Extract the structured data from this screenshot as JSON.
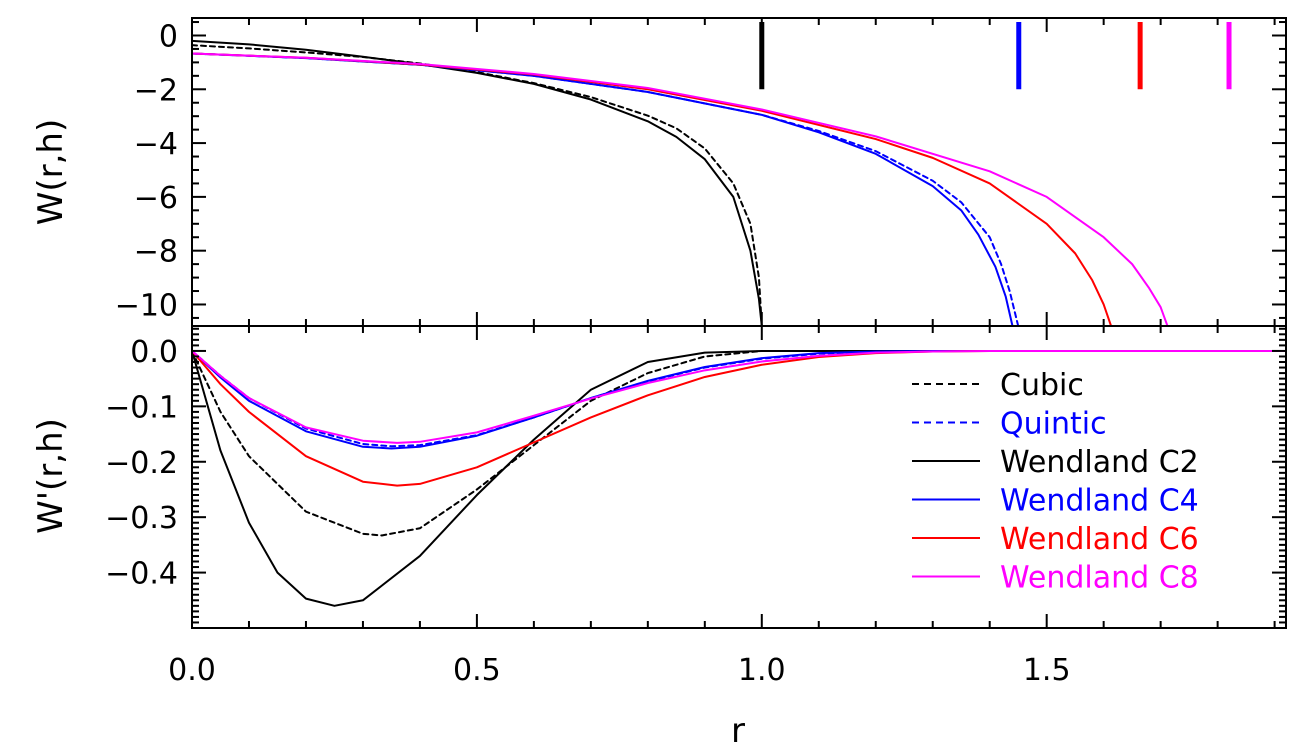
{
  "chart_data": [
    {
      "type": "line",
      "panel": "top",
      "xlabel": "",
      "ylabel": "W(r,h)",
      "xlim": [
        0.0,
        1.92
      ],
      "ylim": [
        -10.8,
        0.65
      ],
      "x_ticks": [
        0.0,
        0.5,
        1.0,
        1.5
      ],
      "x_tick_labels": [
        "",
        "",
        "",
        ""
      ],
      "y_ticks": [
        0,
        -2,
        -4,
        -6,
        -8,
        -10
      ],
      "y_tick_labels": [
        "0",
        "−2",
        "−4",
        "−6",
        "−8",
        "−10"
      ],
      "grid": false,
      "log_values": true,
      "markers": [
        {
          "x": 1.0,
          "y_range": [
            -2.0,
            0.5
          ],
          "color": "#000000"
        },
        {
          "x": 1.451,
          "y_range": [
            -2.0,
            0.5
          ],
          "color": "#0000ff"
        },
        {
          "x": 1.664,
          "y_range": [
            -2.0,
            0.5
          ],
          "color": "#ff0000"
        },
        {
          "x": 1.82,
          "y_range": [
            -2.0,
            0.5
          ],
          "color": "#ff00ff"
        }
      ],
      "series": [
        {
          "name": "Cubic",
          "color": "#000000",
          "dash": true,
          "x": [
            0.0,
            0.1,
            0.2,
            0.3,
            0.4,
            0.5,
            0.6,
            0.7,
            0.8,
            0.85,
            0.9,
            0.95,
            0.98,
            0.995,
            1.0
          ],
          "y": [
            -0.36,
            -0.48,
            -0.63,
            -0.8,
            -1.04,
            -1.36,
            -1.77,
            -2.29,
            -2.98,
            -3.45,
            -4.2,
            -5.5,
            -7.0,
            -9.0,
            -10.8
          ]
        },
        {
          "name": "Quintic",
          "color": "#0000ff",
          "dash": true,
          "x": [
            0.0,
            0.2,
            0.4,
            0.6,
            0.8,
            1.0,
            1.1,
            1.2,
            1.3,
            1.35,
            1.4,
            1.42,
            1.435,
            1.45
          ],
          "y": [
            -0.67,
            -0.84,
            -1.09,
            -1.5,
            -2.1,
            -2.95,
            -3.55,
            -4.3,
            -5.4,
            -6.2,
            -7.5,
            -8.5,
            -9.5,
            -10.8
          ]
        },
        {
          "name": "Wendland C2",
          "color": "#000000",
          "dash": false,
          "x": [
            0.0,
            0.1,
            0.2,
            0.3,
            0.4,
            0.5,
            0.6,
            0.7,
            0.8,
            0.85,
            0.9,
            0.95,
            0.98,
            0.995,
            1.0
          ],
          "y": [
            -0.2,
            -0.33,
            -0.53,
            -0.79,
            -1.07,
            -1.39,
            -1.8,
            -2.38,
            -3.19,
            -3.77,
            -4.6,
            -6.0,
            -8.0,
            -9.8,
            -10.8
          ]
        },
        {
          "name": "Wendland C4",
          "color": "#0000ff",
          "dash": false,
          "x": [
            0.0,
            0.2,
            0.4,
            0.6,
            0.8,
            1.0,
            1.1,
            1.2,
            1.3,
            1.35,
            1.38,
            1.41,
            1.428,
            1.44
          ],
          "y": [
            -0.67,
            -0.84,
            -1.09,
            -1.5,
            -2.1,
            -2.95,
            -3.6,
            -4.4,
            -5.6,
            -6.5,
            -7.4,
            -8.6,
            -9.7,
            -10.8
          ]
        },
        {
          "name": "Wendland C6",
          "color": "#ff0000",
          "dash": false,
          "x": [
            0.0,
            0.2,
            0.4,
            0.6,
            0.8,
            1.0,
            1.2,
            1.3,
            1.4,
            1.5,
            1.55,
            1.58,
            1.6,
            1.613
          ],
          "y": [
            -0.67,
            -0.83,
            -1.08,
            -1.45,
            -2.0,
            -2.8,
            -3.85,
            -4.55,
            -5.5,
            -7.0,
            -8.1,
            -9.1,
            -10.0,
            -10.8
          ]
        },
        {
          "name": "Wendland C8",
          "color": "#ff00ff",
          "dash": false,
          "x": [
            0.0,
            0.2,
            0.4,
            0.6,
            0.8,
            1.0,
            1.2,
            1.4,
            1.5,
            1.6,
            1.65,
            1.68,
            1.7,
            1.712
          ],
          "y": [
            -0.67,
            -0.83,
            -1.06,
            -1.43,
            -1.95,
            -2.75,
            -3.75,
            -5.05,
            -6.0,
            -7.5,
            -8.5,
            -9.4,
            -10.1,
            -10.8
          ]
        }
      ]
    },
    {
      "type": "line",
      "panel": "bottom",
      "xlabel": "r",
      "ylabel": "W'(r,h)",
      "xlim": [
        0.0,
        1.92
      ],
      "ylim": [
        -0.5,
        0.045
      ],
      "x_ticks": [
        0.0,
        0.5,
        1.0,
        1.5
      ],
      "x_tick_labels": [
        "0.0",
        "0.5",
        "1.0",
        "1.5"
      ],
      "y_ticks": [
        0.0,
        -0.1,
        -0.2,
        -0.3,
        -0.4
      ],
      "y_tick_labels": [
        "0.0",
        "−0.1",
        "−0.2",
        "−0.3",
        "−0.4"
      ],
      "grid": false,
      "legend_position": "right",
      "series": [
        {
          "name": "Cubic",
          "color": "#000000",
          "dash": true,
          "x": [
            0.0,
            0.05,
            0.1,
            0.2,
            0.3,
            0.333,
            0.4,
            0.5,
            0.6,
            0.7,
            0.8,
            0.9,
            1.0,
            1.2,
            1.92
          ],
          "y": [
            0.0,
            -0.11,
            -0.19,
            -0.29,
            -0.33,
            -0.333,
            -0.32,
            -0.25,
            -0.17,
            -0.09,
            -0.04,
            -0.01,
            0.0,
            0.0,
            0.0
          ]
        },
        {
          "name": "Quintic",
          "color": "#0000ff",
          "dash": true,
          "x": [
            0.0,
            0.05,
            0.1,
            0.2,
            0.3,
            0.35,
            0.4,
            0.5,
            0.6,
            0.7,
            0.8,
            0.9,
            1.0,
            1.1,
            1.2,
            1.3,
            1.92
          ],
          "y": [
            0.0,
            -0.045,
            -0.085,
            -0.14,
            -0.168,
            -0.172,
            -0.17,
            -0.152,
            -0.12,
            -0.085,
            -0.055,
            -0.03,
            -0.014,
            -0.005,
            -0.0015,
            0.0,
            0.0
          ]
        },
        {
          "name": "Wendland C2",
          "color": "#000000",
          "dash": false,
          "x": [
            0.0,
            0.05,
            0.1,
            0.15,
            0.2,
            0.25,
            0.3,
            0.4,
            0.5,
            0.6,
            0.7,
            0.8,
            0.9,
            1.0,
            1.92
          ],
          "y": [
            0.0,
            -0.18,
            -0.31,
            -0.4,
            -0.447,
            -0.46,
            -0.45,
            -0.37,
            -0.26,
            -0.16,
            -0.07,
            -0.02,
            -0.003,
            0.0,
            0.0
          ]
        },
        {
          "name": "Wendland C4",
          "color": "#0000ff",
          "dash": false,
          "x": [
            0.0,
            0.05,
            0.1,
            0.2,
            0.3,
            0.35,
            0.4,
            0.5,
            0.6,
            0.7,
            0.8,
            0.9,
            1.0,
            1.1,
            1.2,
            1.3,
            1.92
          ],
          "y": [
            0.0,
            -0.048,
            -0.09,
            -0.145,
            -0.173,
            -0.176,
            -0.173,
            -0.153,
            -0.12,
            -0.085,
            -0.054,
            -0.029,
            -0.013,
            -0.004,
            -0.001,
            0.0,
            0.0
          ]
        },
        {
          "name": "Wendland C6",
          "color": "#ff0000",
          "dash": false,
          "x": [
            0.0,
            0.05,
            0.1,
            0.2,
            0.3,
            0.36,
            0.4,
            0.5,
            0.6,
            0.7,
            0.8,
            0.9,
            1.0,
            1.1,
            1.2,
            1.3,
            1.4,
            1.92
          ],
          "y": [
            0.0,
            -0.06,
            -0.11,
            -0.19,
            -0.236,
            -0.243,
            -0.24,
            -0.21,
            -0.165,
            -0.12,
            -0.08,
            -0.047,
            -0.025,
            -0.011,
            -0.004,
            -0.001,
            0.0,
            0.0
          ]
        },
        {
          "name": "Wendland C8",
          "color": "#ff00ff",
          "dash": false,
          "x": [
            0.0,
            0.05,
            0.1,
            0.2,
            0.3,
            0.36,
            0.4,
            0.5,
            0.6,
            0.7,
            0.8,
            0.9,
            1.0,
            1.1,
            1.2,
            1.3,
            1.4,
            1.92
          ],
          "y": [
            0.0,
            -0.045,
            -0.085,
            -0.138,
            -0.162,
            -0.166,
            -0.164,
            -0.147,
            -0.117,
            -0.086,
            -0.058,
            -0.035,
            -0.019,
            -0.009,
            -0.003,
            -0.001,
            0.0,
            0.0
          ]
        }
      ]
    }
  ]
}
